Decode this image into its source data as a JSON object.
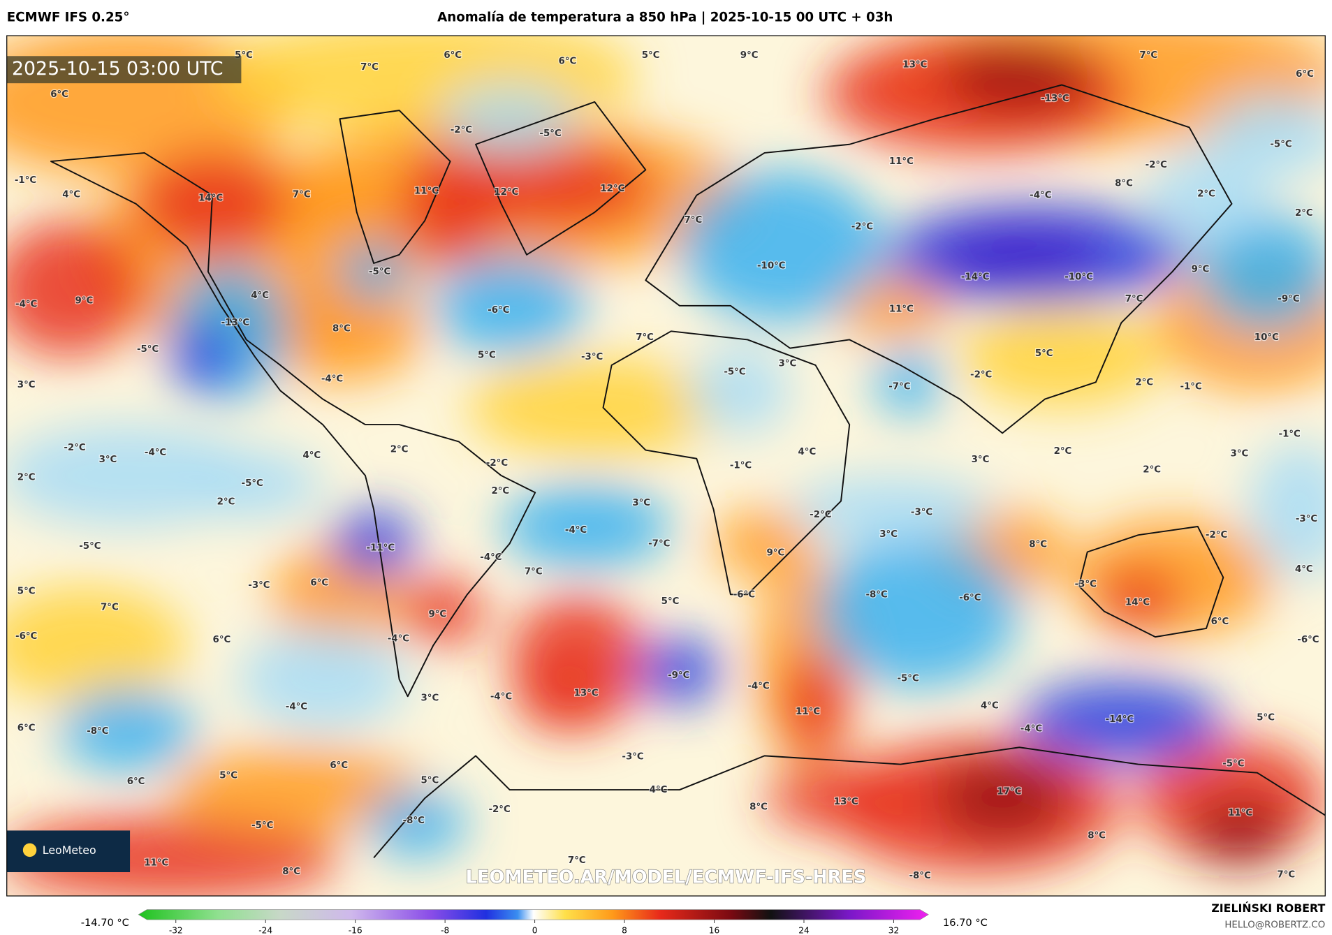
{
  "header": {
    "model": "ECMWF IFS 0.25°",
    "title": "Anomalía de temperatura a 850 hPa | 2025-10-15 00 UTC + 03h"
  },
  "map": {
    "timestamp": "2025-10-15 03:00 UTC",
    "logo": "LeoMeteo",
    "watermark": "LEOMETEO.AR/MODEL/ECMWF-IFS-HRES",
    "labels": [
      "5°C",
      "7°C",
      "6°C",
      "6°C",
      "5°C",
      "9°C",
      "13°C",
      "7°C",
      "6°C",
      "6°C",
      "-2°C",
      "-5°C",
      "-13°C",
      "-5°C",
      "11°C",
      "-2°C",
      "8°C",
      "-1°C",
      "4°C",
      "14°C",
      "7°C",
      "11°C",
      "12°C",
      "12°C",
      "-4°C",
      "2°C",
      "2°C",
      "7°C",
      "-2°C",
      "-10°C",
      "-14°C",
      "-10°C",
      "9°C",
      "-9°C",
      "-5°C",
      "-6°C",
      "4°C",
      "-4°C",
      "9°C",
      "-13°C",
      "8°C",
      "11°C",
      "7°C",
      "10°C",
      "7°C",
      "5°C",
      "-3°C",
      "-5°C",
      "-4°C",
      "-5°C",
      "3°C",
      "5°C",
      "-2°C",
      "-7°C",
      "2°C",
      "-1°C",
      "3°C",
      "-2°C",
      "3°C",
      "-4°C",
      "4°C",
      "2°C",
      "-2°C",
      "4°C",
      "-1°C",
      "3°C",
      "2°C",
      "3°C",
      "-1°C",
      "2°C",
      "2°C",
      "-5°C",
      "2°C",
      "2°C",
      "3°C",
      "-2°C",
      "-3°C",
      "3°C",
      "-4°C",
      "-7°C",
      "-5°C",
      "-11°C",
      "-4°C",
      "8°C",
      "-2°C",
      "-3°C",
      "9°C",
      "7°C",
      "6°C",
      "-3°C",
      "5°C",
      "4°C",
      "-3°C",
      "-8°C",
      "-6°C",
      "-6°C",
      "5°C",
      "14°C",
      "7°C",
      "9°C",
      "6°C",
      "-6°C",
      "6°C",
      "-4°C",
      "-6°C",
      "-9°C",
      "-4°C",
      "-5°C",
      "13°C",
      "3°C",
      "-4°C",
      "11°C",
      "4°C",
      "-4°C",
      "-14°C",
      "5°C",
      "-4°C",
      "6°C",
      "-8°C",
      "-3°C",
      "6°C",
      "5°C",
      "6°C",
      "5°C",
      "-5°C",
      "4°C",
      "17°C",
      "13°C",
      "8°C",
      "-2°C",
      "-8°C",
      "11°C",
      "-5°C",
      "8°C",
      "7°C",
      "11°C",
      "8°C",
      "-8°C",
      "7°C"
    ]
  },
  "colorbar": {
    "min_label": "-14.70 °C",
    "max_label": "16.70 °C",
    "ticks": [
      -32,
      -24,
      -16,
      -8,
      0,
      8,
      16,
      24,
      32
    ]
  },
  "credits": {
    "author": "ZIELIŃSKI ROBERT",
    "email": "HELLO@ROBERTZ.CO"
  }
}
